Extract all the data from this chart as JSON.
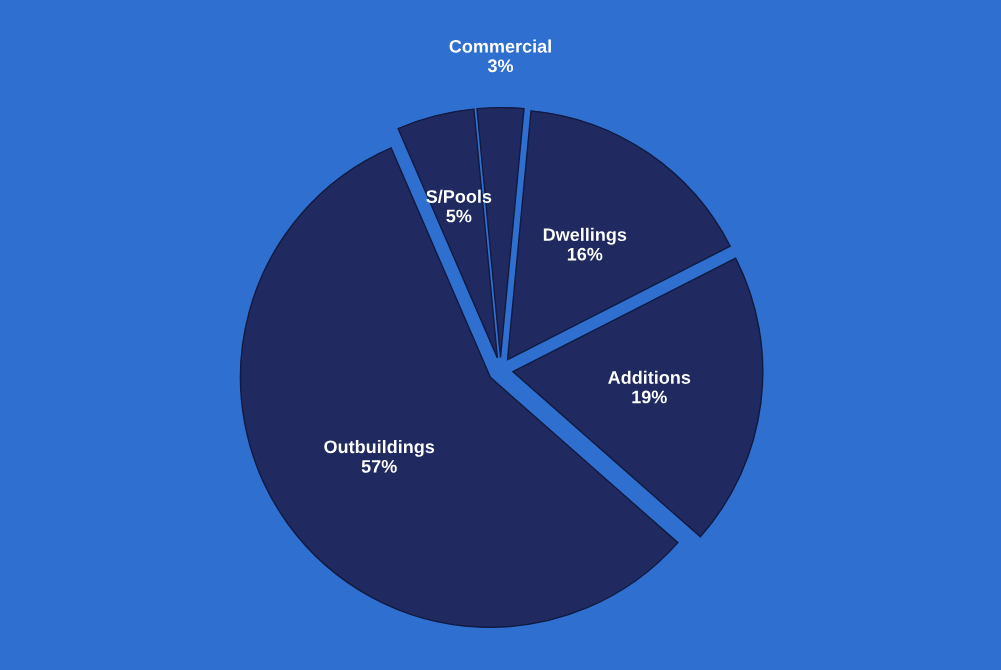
{
  "chart_data": {
    "type": "pie",
    "categories": [
      "Commercial",
      "Dwellings",
      "Additions",
      "Outbuildings",
      "S/Pools"
    ],
    "values": [
      3,
      16,
      19,
      57,
      5
    ],
    "colors": [
      "#202a60",
      "#202a60",
      "#202a60",
      "#202a60",
      "#202a60"
    ],
    "value_labels": [
      "3%",
      "16%",
      "19%",
      "57%",
      "5%"
    ]
  }
}
